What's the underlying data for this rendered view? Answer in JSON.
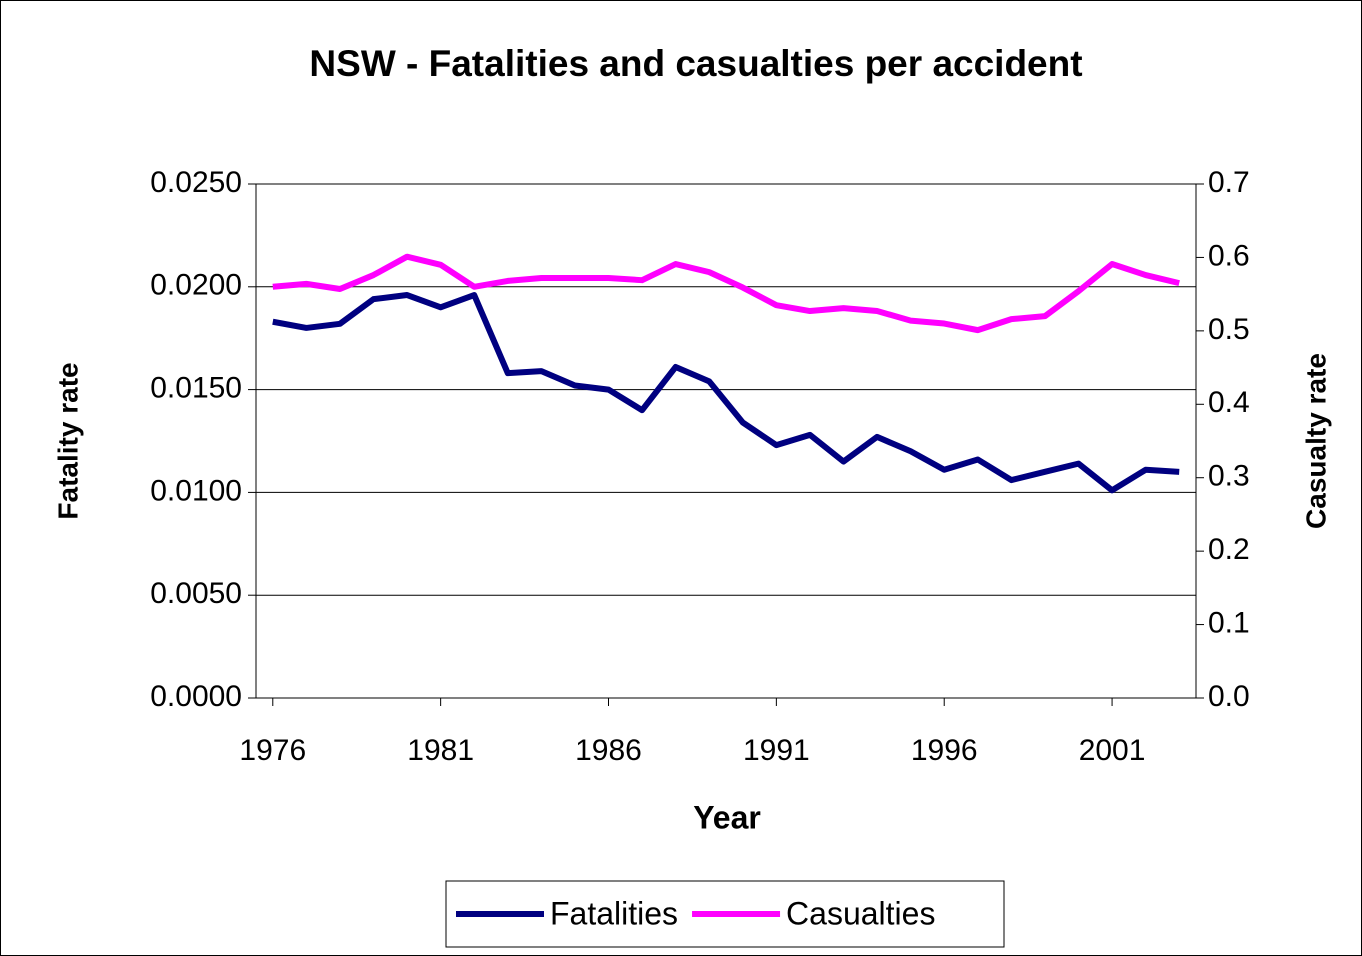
{
  "chart_data": {
    "type": "line",
    "title": "NSW - Fatalities and casualties per accident",
    "x_label": "Year",
    "y_label": "Fatality rate",
    "y2_label": "Casualty rate",
    "x": [
      1976,
      1977,
      1978,
      1979,
      1980,
      1981,
      1982,
      1983,
      1984,
      1985,
      1986,
      1987,
      1988,
      1989,
      1990,
      1991,
      1992,
      1993,
      1994,
      1995,
      1996,
      1997,
      1998,
      1999,
      2000,
      2001,
      2002,
      2003
    ],
    "xlim": [
      1975.5,
      2003.5
    ],
    "xticks": [
      1976,
      1981,
      1986,
      1991,
      1996,
      2001
    ],
    "ylim": [
      0,
      0.025
    ],
    "yticks": [
      {
        "value": 0,
        "label": "0.0000"
      },
      {
        "value": 0.005,
        "label": "0.0050"
      },
      {
        "value": 0.01,
        "label": "0.0100"
      },
      {
        "value": 0.015,
        "label": "0.0150"
      },
      {
        "value": 0.02,
        "label": "0.0200"
      },
      {
        "value": 0.025,
        "label": "0.0250"
      }
    ],
    "y2lim": [
      0,
      0.7
    ],
    "y2ticks": [
      {
        "value": 0,
        "label": "0.0"
      },
      0.1,
      0.2,
      0.3,
      0.4,
      0.5,
      0.6,
      0.7
    ],
    "grid": true,
    "legend": "bottom",
    "series": [
      {
        "name": "Fatalities",
        "color": "#000080",
        "values": [
          0.0183,
          0.018,
          0.0182,
          0.0194,
          0.0196,
          0.019,
          0.0196,
          0.0158,
          0.0159,
          0.0152,
          0.015,
          0.014,
          0.0161,
          0.0154,
          0.0134,
          0.0123,
          0.0128,
          0.0115,
          0.0127,
          0.012,
          0.0111,
          0.0116,
          0.0106,
          0.011,
          0.0114,
          0.0101,
          0.0111,
          0.011
        ]
      },
      {
        "name": "Casualties",
        "color": "#ff00ff",
        "axis": "y2",
        "values": [
          0.56,
          0.564,
          0.557,
          0.576,
          0.601,
          0.59,
          0.56,
          0.568,
          0.572,
          0.572,
          0.572,
          0.569,
          0.591,
          0.58,
          0.559,
          0.535,
          0.527,
          0.531,
          0.527,
          0.514,
          0.51,
          0.501,
          0.516,
          0.52,
          0.554,
          0.591,
          0.576,
          0.565
        ]
      }
    ]
  }
}
